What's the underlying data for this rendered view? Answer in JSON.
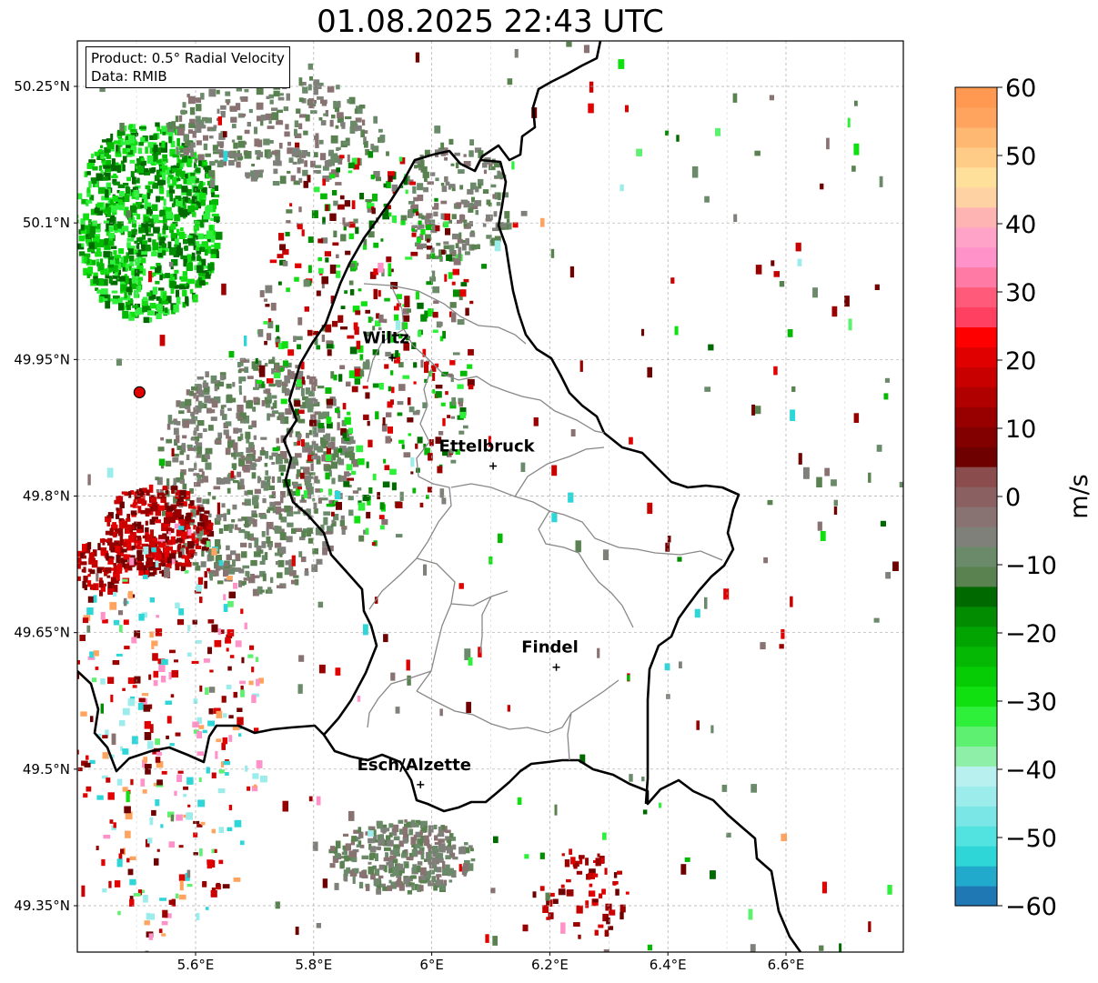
{
  "title": "01.08.2025 22:43 UTC",
  "info": {
    "product": "Product: 0.5° Radial Velocity",
    "data_source": "Data: RMIB"
  },
  "map": {
    "lon_range": [
      5.4,
      6.8
    ],
    "lat_range": [
      49.3,
      50.3
    ],
    "lon_ticks": [
      {
        "value": 5.6,
        "label": "5.6°E"
      },
      {
        "value": 5.8,
        "label": "5.8°E"
      },
      {
        "value": 6.0,
        "label": "6°E"
      },
      {
        "value": 6.2,
        "label": "6.2°E"
      },
      {
        "value": 6.4,
        "label": "6.4°E"
      },
      {
        "value": 6.6,
        "label": "6.6°E"
      }
    ],
    "lat_ticks": [
      {
        "value": 50.25,
        "label": "50.25°N"
      },
      {
        "value": 50.1,
        "label": "50.1°N"
      },
      {
        "value": 49.95,
        "label": "49.95°N"
      },
      {
        "value": 49.8,
        "label": "49.8°N"
      },
      {
        "value": 49.65,
        "label": "49.65°N"
      },
      {
        "value": 49.5,
        "label": "49.5°N"
      },
      {
        "value": 49.35,
        "label": "49.35°N"
      }
    ],
    "radar_site": {
      "lon": 5.505,
      "lat": 49.914
    },
    "cities": [
      {
        "name": "Wiltz",
        "lon": 5.933,
        "lat": 49.966
      },
      {
        "name": "Ettelbruck",
        "lon": 6.104,
        "lat": 49.847
      },
      {
        "name": "Findel",
        "lon": 6.211,
        "lat": 49.626
      },
      {
        "name": "Esch/Alzette",
        "lon": 5.981,
        "lat": 49.497
      }
    ]
  },
  "colorbar": {
    "label": "m/s",
    "min": -60,
    "max": 60,
    "ticks": [
      {
        "value": 60,
        "label": "60"
      },
      {
        "value": 50,
        "label": "50"
      },
      {
        "value": 40,
        "label": "40"
      },
      {
        "value": 30,
        "label": "30"
      },
      {
        "value": 20,
        "label": "20"
      },
      {
        "value": 10,
        "label": "10"
      },
      {
        "value": 0,
        "label": "0"
      },
      {
        "value": -10,
        "label": "−10"
      },
      {
        "value": -20,
        "label": "−20"
      },
      {
        "value": -30,
        "label": "−30"
      },
      {
        "value": -40,
        "label": "−40"
      },
      {
        "value": -50,
        "label": "−50"
      },
      {
        "value": -60,
        "label": "−60"
      }
    ],
    "colors": [
      "#1f78b4",
      "#22aacc",
      "#2fd6d8",
      "#52e2e0",
      "#7ae6e6",
      "#9cecec",
      "#b8f0f0",
      "#8ef0a8",
      "#5ef070",
      "#2ef03a",
      "#10e010",
      "#06cc06",
      "#04b804",
      "#02a402",
      "#028c02",
      "#006a00",
      "#5a8250",
      "#6a8a6a",
      "#80807a",
      "#887272",
      "#8a6060",
      "#8a4c4c",
      "#6e0000",
      "#820000",
      "#980000",
      "#b00000",
      "#c80000",
      "#e00000",
      "#ff0000",
      "#ff4060",
      "#ff5a7a",
      "#ff7aa4",
      "#ff92c8",
      "#ffa4c8",
      "#ffb4b4",
      "#ffd2a4",
      "#ffe09a",
      "#ffcc88",
      "#ffb872",
      "#ffa45e",
      "#ff9850"
    ]
  }
}
